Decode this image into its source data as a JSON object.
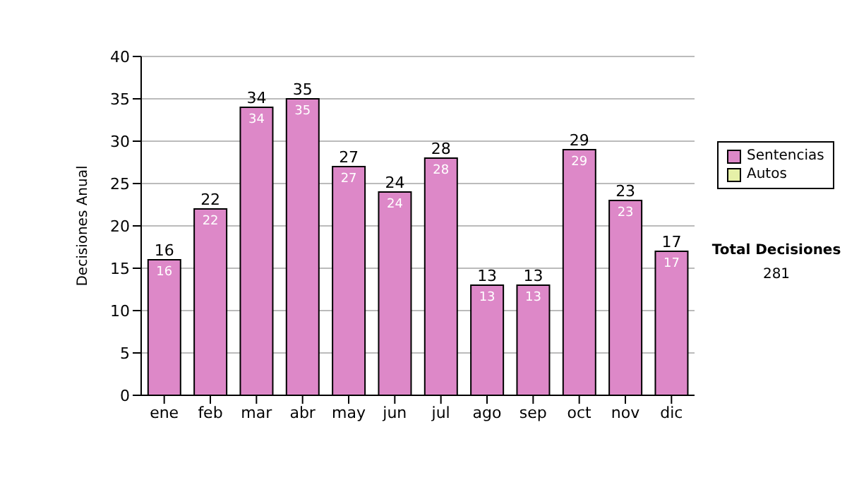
{
  "chart_data": {
    "type": "bar",
    "ylabel": "Decisiones Anual",
    "categories": [
      "ene",
      "feb",
      "mar",
      "abr",
      "may",
      "jun",
      "jul",
      "ago",
      "sep",
      "oct",
      "nov",
      "dic"
    ],
    "series": [
      {
        "name": "Sentencias",
        "color": "#dd88c8",
        "values": [
          16,
          22,
          34,
          35,
          27,
          24,
          28,
          13,
          13,
          29,
          23,
          17
        ],
        "value_labels": [
          "16",
          "22",
          "34",
          "35",
          "27",
          "24",
          "28",
          "13",
          "13",
          "29",
          "23",
          "17"
        ]
      },
      {
        "name": "Autos",
        "color": "#e6f0a8",
        "values": [
          null,
          null,
          null,
          null,
          null,
          null,
          null,
          null,
          null,
          null,
          null,
          null
        ]
      }
    ],
    "stacked": true,
    "totals": [
      "16",
      "22",
      "34",
      "35",
      "27",
      "24",
      "28",
      "13",
      "13",
      "29",
      "23",
      "17"
    ],
    "ylim": [
      0,
      40
    ],
    "yticks": [
      0,
      5,
      10,
      15,
      20,
      25,
      30,
      35,
      40
    ],
    "grid": "y",
    "legend": "right",
    "annotations": [
      "Total Decisiones",
      "281"
    ]
  }
}
